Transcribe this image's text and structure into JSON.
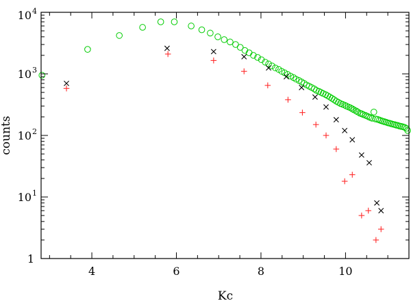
{
  "chart_data": {
    "type": "scatter",
    "title": "",
    "xlabel": "Kc",
    "ylabel": "counts",
    "xlim": [
      2.8,
      11.5
    ],
    "ylim": [
      1,
      10000
    ],
    "yscale": "log",
    "grid": false,
    "x_ticks": [
      "4",
      "6",
      "8",
      "10"
    ],
    "y_ticks": [
      {
        "base": "1",
        "exp": ""
      },
      {
        "base": "10",
        "exp": "1"
      },
      {
        "base": "10",
        "exp": "2"
      },
      {
        "base": "10",
        "exp": "3"
      },
      {
        "base": "10",
        "exp": "4"
      }
    ],
    "series": [
      {
        "marker": "circle",
        "color": "#00cc00",
        "x": [
          2.82,
          3.9,
          4.65,
          5.2,
          5.63,
          5.95,
          6.35,
          6.6,
          6.8,
          6.98,
          7.13,
          7.27,
          7.4,
          7.51,
          7.62,
          7.72,
          7.82,
          7.92,
          8.01,
          8.1,
          8.18,
          8.26,
          8.34,
          8.42,
          8.49,
          8.56,
          8.63,
          8.7,
          8.77,
          8.83,
          8.9,
          8.96,
          9.02,
          9.08,
          9.14,
          9.2,
          9.26,
          9.31,
          9.37,
          9.42,
          9.47,
          9.53,
          9.58,
          9.63,
          9.68,
          9.73,
          9.78,
          9.83,
          9.88,
          9.93,
          9.98,
          10.02,
          10.07,
          10.12,
          10.16,
          10.2,
          10.25,
          10.29,
          10.34,
          10.38,
          10.42,
          10.47,
          10.51,
          10.55,
          10.59,
          10.63,
          10.67,
          10.71,
          10.76,
          10.8,
          10.84,
          10.88,
          10.92,
          10.96,
          11.0,
          11.04,
          11.08,
          11.12,
          11.16,
          11.2,
          11.24,
          11.28,
          11.32,
          11.36,
          11.4,
          11.44,
          11.47
        ],
        "y": [
          950,
          2500,
          4200,
          5700,
          7000,
          7000,
          6000,
          5200,
          4600,
          4000,
          3600,
          3300,
          3000,
          2700,
          2400,
          2200,
          2000,
          1850,
          1700,
          1550,
          1450,
          1350,
          1250,
          1180,
          1100,
          1040,
          980,
          920,
          870,
          820,
          780,
          740,
          700,
          660,
          630,
          600,
          570,
          540,
          520,
          500,
          480,
          460,
          440,
          420,
          400,
          380,
          360,
          345,
          330,
          320,
          310,
          300,
          290,
          280,
          270,
          260,
          250,
          240,
          230,
          225,
          218,
          212,
          206,
          200,
          195,
          190,
          240,
          185,
          182,
          178,
          174,
          170,
          167,
          164,
          160,
          158,
          155,
          152,
          150,
          147,
          145,
          142,
          140,
          138,
          135,
          130,
          120
        ]
      },
      {
        "marker": "x",
        "color": "#000000",
        "x": [
          3.4,
          5.78,
          6.88,
          7.6,
          8.18,
          8.6,
          8.96,
          9.28,
          9.54,
          9.78,
          9.98,
          10.16,
          10.38,
          10.56,
          10.74,
          10.84
        ],
        "y": [
          700,
          2600,
          2300,
          1900,
          1250,
          900,
          600,
          420,
          290,
          180,
          120,
          85,
          48,
          36,
          8,
          6
        ]
      },
      {
        "marker": "plus",
        "color": "#ff2a2a",
        "x": [
          3.4,
          5.8,
          6.88,
          7.6,
          8.16,
          8.64,
          8.98,
          9.3,
          9.54,
          9.78,
          9.98,
          10.16,
          10.38,
          10.54,
          10.72,
          10.84
        ],
        "y": [
          580,
          2100,
          1650,
          1100,
          650,
          380,
          235,
          150,
          100,
          60,
          18,
          23,
          5,
          6,
          2,
          3
        ]
      }
    ]
  }
}
